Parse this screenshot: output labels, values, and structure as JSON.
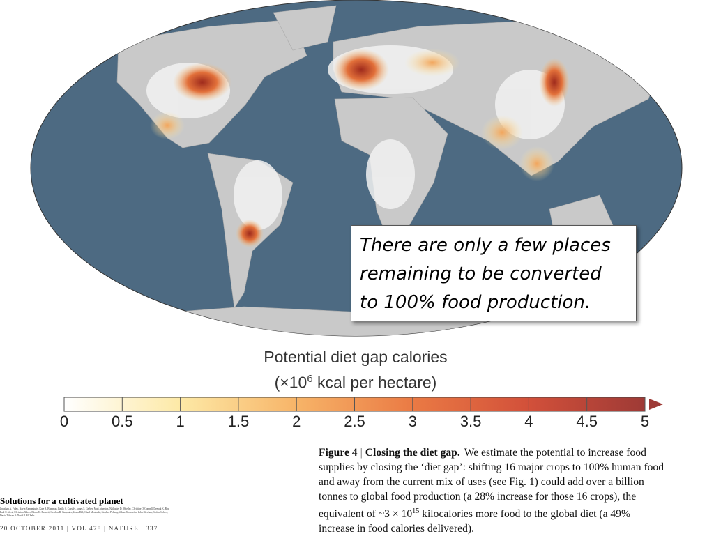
{
  "callout": {
    "lines": [
      "There are only a few places",
      "remaining to be converted",
      "to 100% food production."
    ]
  },
  "legend": {
    "title": "Potential diet gap calories",
    "unit": {
      "before": "(×10",
      "sup": "6",
      "after": " kcal per hectare)"
    },
    "lim": [
      0,
      5
    ],
    "ticks": [
      0,
      0.5,
      1,
      1.5,
      2,
      2.5,
      3,
      3.5,
      4,
      4.5,
      5
    ],
    "colors": [
      "#ffffff",
      "#fde9a6",
      "#f7b468",
      "#ea7a44",
      "#d2503a",
      "#9e3a36"
    ]
  },
  "caption": {
    "label": "Figure 4",
    "heading": "Closing the diet gap.",
    "lines": [
      "We estimate the potential to increase food",
      "supplies by closing the ‘diet gap’: shifting 16 major crops to 100% human food",
      "and away from the current mix of uses (see Fig. 1) could add over a billion",
      "tonnes to global food production (a 28% increase for those 16 crops), the",
      {
        "before": "equivalent of ~3 × 10",
        "sup": "15",
        "after": " kilocalories more food to the global diet (a 49%"
      },
      "increase in food calories delivered)."
    ]
  },
  "article": {
    "title": "Solutions for a cultivated planet",
    "authors": "Jonathan A. Foley, Navin Ramankutty, Kate A. Brauman, Emily S. Cassidy, James S. Gerber, Matt Johnston, Nathaniel D. Mueller, Christine O’Connell, Deepak K. Ray, Paul C. West, Christian Balzer, Elena M. Bennett, Stephen R. Carpenter, Jason Hill, Chad Monfreda, Stephen Polasky, Johan Rockström, John Sheehan, Stefan Siebert, David Tilman & David P. M. Zaks",
    "footer": "20 OCTOBER 2011 | VOL 478 | NATURE | 337"
  }
}
